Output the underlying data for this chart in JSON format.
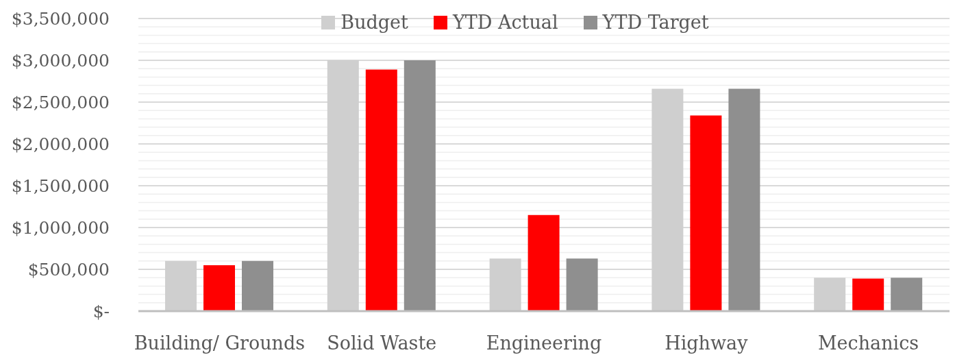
{
  "chart_data": {
    "type": "bar",
    "categories": [
      "Building/ Grounds",
      "Solid Waste",
      "Engineering",
      "Highway",
      "Mechanics"
    ],
    "series": [
      {
        "name": "Budget",
        "color": "#cfcfcf",
        "values": [
          600000,
          3000000,
          630000,
          2660000,
          400000
        ]
      },
      {
        "name": "YTD Actual",
        "color": "#ff0000",
        "values": [
          550000,
          2890000,
          1150000,
          2340000,
          390000
        ]
      },
      {
        "name": "YTD Target",
        "color": "#8f8f8f",
        "values": [
          600000,
          3000000,
          630000,
          2660000,
          400000
        ]
      }
    ],
    "ylim": [
      0,
      3500000
    ],
    "yticks": [
      {
        "value": 0,
        "label": "$-"
      },
      {
        "value": 100000,
        "label": null
      },
      {
        "value": 200000,
        "label": null
      },
      {
        "value": 300000,
        "label": null
      },
      {
        "value": 400000,
        "label": null
      },
      {
        "value": 500000,
        "label": "$500,000"
      },
      {
        "value": 600000,
        "label": null
      },
      {
        "value": 700000,
        "label": null
      },
      {
        "value": 800000,
        "label": null
      },
      {
        "value": 900000,
        "label": null
      },
      {
        "value": 1000000,
        "label": "$1,000,000"
      },
      {
        "value": 1100000,
        "label": null
      },
      {
        "value": 1200000,
        "label": null
      },
      {
        "value": 1300000,
        "label": null
      },
      {
        "value": 1400000,
        "label": null
      },
      {
        "value": 1500000,
        "label": "$1,500,000"
      },
      {
        "value": 1600000,
        "label": null
      },
      {
        "value": 1700000,
        "label": null
      },
      {
        "value": 1800000,
        "label": null
      },
      {
        "value": 1900000,
        "label": null
      },
      {
        "value": 2000000,
        "label": "$2,000,000"
      },
      {
        "value": 2100000,
        "label": null
      },
      {
        "value": 2200000,
        "label": null
      },
      {
        "value": 2300000,
        "label": null
      },
      {
        "value": 2400000,
        "label": null
      },
      {
        "value": 2500000,
        "label": "$2,500,000"
      },
      {
        "value": 2600000,
        "label": null
      },
      {
        "value": 2700000,
        "label": null
      },
      {
        "value": 2800000,
        "label": null
      },
      {
        "value": 2900000,
        "label": null
      },
      {
        "value": 3000000,
        "label": "$3,000,000"
      },
      {
        "value": 3100000,
        "label": null
      },
      {
        "value": 3200000,
        "label": null
      },
      {
        "value": 3300000,
        "label": null
      },
      {
        "value": 3400000,
        "label": null
      },
      {
        "value": 3500000,
        "label": "$3,500,000"
      }
    ],
    "grid": "y",
    "legend": "top"
  }
}
